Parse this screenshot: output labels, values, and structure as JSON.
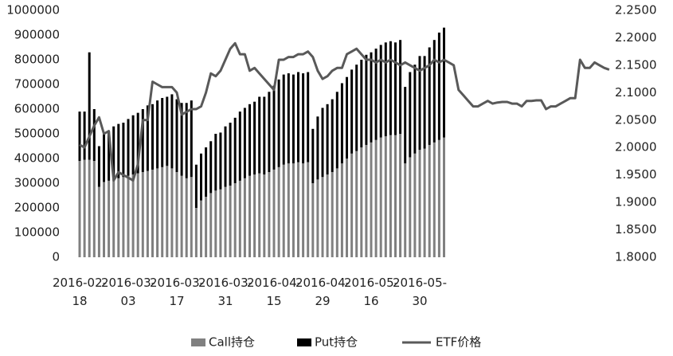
{
  "chart_data": {
    "type": "bar",
    "stacked": true,
    "categories": [
      "2016-02-18",
      null,
      null,
      null,
      null,
      null,
      null,
      null,
      null,
      null,
      "2016-03-03",
      null,
      null,
      null,
      null,
      null,
      null,
      null,
      null,
      null,
      "2016-03-17",
      null,
      null,
      null,
      null,
      null,
      null,
      null,
      null,
      null,
      "2016-03-31",
      null,
      null,
      null,
      null,
      null,
      null,
      null,
      null,
      null,
      "2016-04-15",
      null,
      null,
      null,
      null,
      null,
      null,
      null,
      null,
      null,
      "2016-04-29",
      null,
      null,
      null,
      null,
      null,
      null,
      null,
      null,
      null,
      "2016-05-16",
      null,
      null,
      null,
      null,
      null,
      null,
      null,
      null,
      null,
      "2016-05-30",
      null,
      null,
      null,
      null,
      null,
      null,
      null,
      null,
      null,
      null,
      null,
      null,
      null,
      null,
      null,
      null,
      null,
      null,
      null,
      null,
      null,
      null,
      null,
      null,
      null,
      null,
      null,
      null,
      null,
      null,
      null,
      null,
      null,
      null,
      null,
      null,
      null,
      null,
      null
    ],
    "series": [
      {
        "name": "Call持仓",
        "type": "bar",
        "color": "#808080",
        "values": [
          390000,
          395000,
          395000,
          390000,
          285000,
          305000,
          310000,
          315000,
          320000,
          325000,
          330000,
          335000,
          340000,
          345000,
          350000,
          355000,
          360000,
          365000,
          370000,
          360000,
          345000,
          330000,
          320000,
          325000,
          200000,
          230000,
          245000,
          260000,
          270000,
          275000,
          285000,
          290000,
          300000,
          310000,
          320000,
          330000,
          335000,
          340000,
          335000,
          345000,
          355000,
          365000,
          375000,
          380000,
          380000,
          385000,
          380000,
          385000,
          300000,
          315000,
          325000,
          335000,
          345000,
          360000,
          380000,
          400000,
          420000,
          430000,
          445000,
          455000,
          465000,
          475000,
          485000,
          490000,
          495000,
          495000,
          500000,
          380000,
          405000,
          420000,
          435000,
          440000,
          455000,
          465000,
          475000,
          485000,
          null,
          null,
          null,
          null,
          null,
          null,
          null,
          null,
          null,
          null,
          null,
          null,
          null,
          null,
          null,
          null,
          null,
          null,
          null,
          null,
          null,
          null,
          null,
          null,
          null,
          null,
          null,
          null,
          null,
          null,
          null,
          null,
          null,
          null
        ]
      },
      {
        "name": "Put持仓",
        "type": "bar",
        "color": "#000000",
        "values": [
          200000,
          195000,
          435000,
          210000,
          165000,
          195000,
          200000,
          215000,
          220000,
          220000,
          230000,
          240000,
          245000,
          255000,
          265000,
          265000,
          275000,
          280000,
          280000,
          300000,
          295000,
          295000,
          305000,
          310000,
          175000,
          190000,
          200000,
          210000,
          230000,
          230000,
          245000,
          255000,
          265000,
          280000,
          285000,
          290000,
          295000,
          310000,
          315000,
          325000,
          340000,
          355000,
          365000,
          365000,
          360000,
          365000,
          365000,
          365000,
          220000,
          255000,
          280000,
          285000,
          295000,
          310000,
          325000,
          330000,
          340000,
          350000,
          355000,
          365000,
          365000,
          370000,
          375000,
          380000,
          380000,
          375000,
          380000,
          310000,
          345000,
          360000,
          380000,
          375000,
          395000,
          415000,
          435000,
          445000,
          null,
          null,
          null,
          null,
          null,
          null,
          null,
          null,
          null,
          null,
          null,
          null,
          null,
          null,
          null,
          null,
          null,
          null,
          null,
          null,
          null,
          null,
          null,
          null,
          null,
          null,
          null,
          null,
          null,
          null,
          null,
          null,
          null,
          null
        ]
      },
      {
        "name": "ETF价格",
        "type": "line",
        "axis": "y2",
        "color": "#595959",
        "values": [
          2.005,
          2.0,
          2.02,
          2.04,
          2.055,
          2.025,
          2.03,
          1.94,
          1.955,
          1.95,
          1.945,
          1.94,
          1.97,
          2.05,
          2.05,
          2.12,
          2.115,
          2.11,
          2.11,
          2.11,
          2.1,
          2.06,
          2.065,
          2.07,
          2.07,
          2.075,
          2.1,
          2.135,
          2.13,
          2.14,
          2.16,
          2.18,
          2.19,
          2.17,
          2.17,
          2.14,
          2.145,
          2.135,
          2.125,
          2.115,
          2.105,
          2.16,
          2.16,
          2.165,
          2.165,
          2.17,
          2.17,
          2.175,
          2.165,
          2.14,
          2.125,
          2.13,
          2.14,
          2.145,
          2.145,
          2.17,
          2.175,
          2.18,
          2.17,
          2.16,
          2.16,
          2.155,
          2.16,
          2.155,
          2.16,
          2.155,
          2.15,
          2.155,
          2.15,
          2.145,
          2.14,
          2.145,
          2.15,
          2.16,
          2.155,
          2.16,
          2.155,
          2.15,
          2.105,
          2.095,
          2.085,
          2.075,
          2.075,
          2.08,
          2.085,
          2.08,
          2.082,
          2.083,
          2.083,
          2.08,
          2.08,
          2.075,
          2.085,
          2.085,
          2.086,
          2.086,
          2.07,
          2.075,
          2.075,
          2.08,
          2.085,
          2.09,
          2.09,
          2.16,
          2.145,
          2.145,
          2.155,
          2.15,
          2.145,
          2.142
        ]
      }
    ],
    "ylim": [
      0,
      1000000
    ],
    "yticks": [
      0,
      100000,
      200000,
      300000,
      400000,
      500000,
      600000,
      700000,
      800000,
      900000,
      1000000
    ],
    "y2lim": [
      1.8,
      2.25
    ],
    "y2ticks": [
      {
        "value": 1.8,
        "label": "1.8000"
      },
      {
        "value": 1.85,
        "label": "1.8500"
      },
      {
        "value": 1.9,
        "label": "1.9000"
      },
      {
        "value": 1.95,
        "label": "1.9500"
      },
      {
        "value": 2.0,
        "label": "2.0000"
      },
      {
        "value": 2.05,
        "label": "2.0500"
      },
      {
        "value": 2.1,
        "label": "2.1000"
      },
      {
        "value": 2.15,
        "label": "2.1500"
      },
      {
        "value": 2.2,
        "label": "2.2000"
      },
      {
        "value": 2.25,
        "label": "2.2500"
      }
    ],
    "grid": false,
    "legend": "bottom"
  }
}
